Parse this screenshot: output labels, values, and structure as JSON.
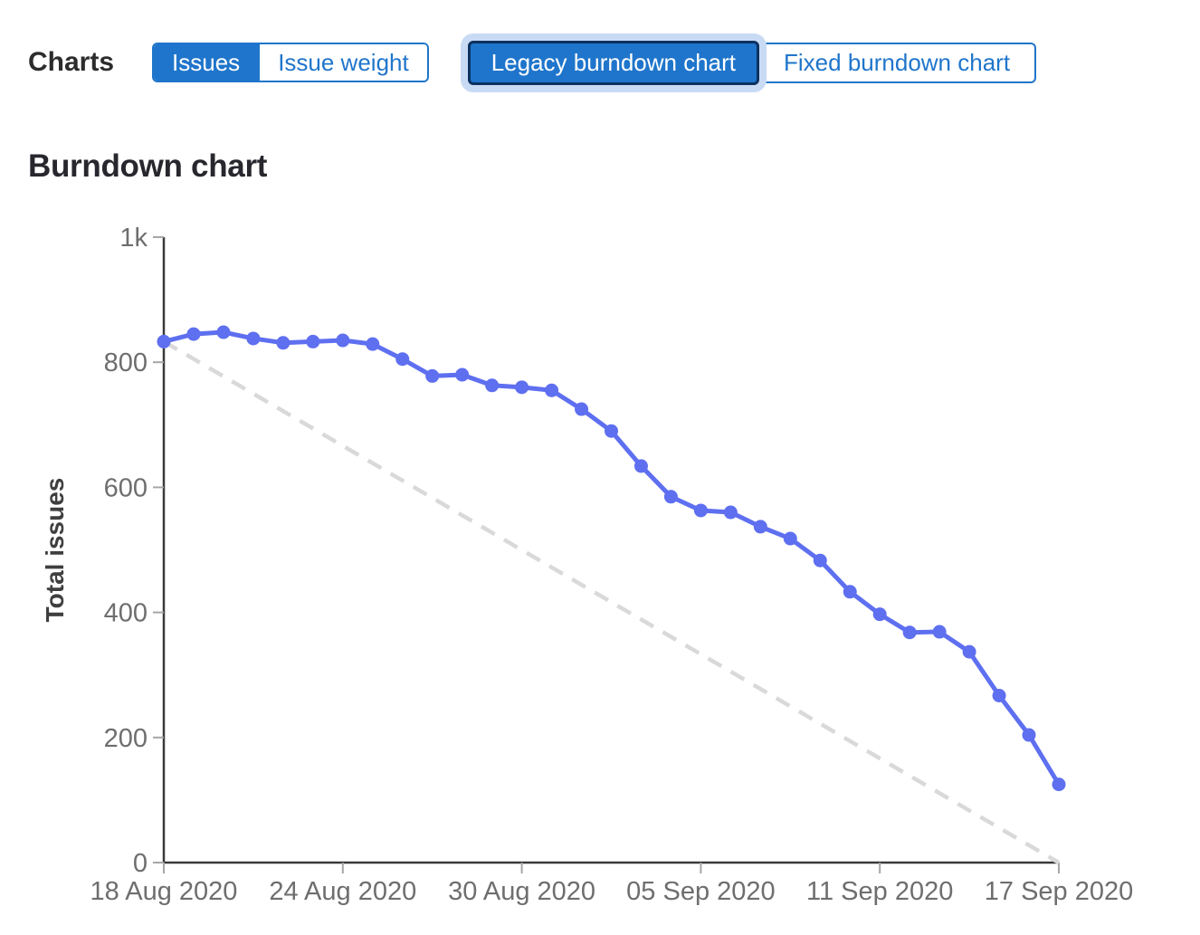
{
  "header": {
    "section_label": "Charts",
    "metric_toggle": {
      "options": [
        {
          "label": "Issues",
          "selected": true
        },
        {
          "label": "Issue weight",
          "selected": false
        }
      ]
    },
    "chart_type_toggle": {
      "options": [
        {
          "label": "Legacy burndown chart",
          "selected": true,
          "focused": true
        },
        {
          "label": "Fixed burndown chart",
          "selected": false
        }
      ]
    }
  },
  "chart_data": {
    "type": "line",
    "title": "Burndown chart",
    "xlabel": "",
    "ylabel": "Total issues",
    "ylim": [
      0,
      1000
    ],
    "grid": false,
    "legend": "none",
    "x_range": [
      "18 Aug 2020",
      "17 Sep 2020"
    ],
    "x_tick_labels": [
      "18 Aug 2020",
      "24 Aug 2020",
      "30 Aug 2020",
      "05 Sep 2020",
      "11 Sep 2020",
      "17 Sep 2020"
    ],
    "x_tick_day_index": [
      0,
      6,
      12,
      18,
      24,
      30
    ],
    "y_tick_labels": [
      "0",
      "200",
      "400",
      "600",
      "800",
      "1k"
    ],
    "y_tick_values": [
      0,
      200,
      400,
      600,
      800,
      1000
    ],
    "num_points": 31,
    "series": [
      {
        "name": "Total issues",
        "style": "solid-line-with-points",
        "color": "#5e6ff0",
        "values": [
          833,
          845,
          848,
          838,
          831,
          833,
          835,
          829,
          805,
          778,
          780,
          763,
          760,
          755,
          725,
          690,
          634,
          585,
          563,
          560,
          537,
          518,
          483,
          433,
          397,
          368,
          369,
          337,
          267,
          204,
          125
        ]
      },
      {
        "name": "Ideal guideline",
        "style": "dashed-line",
        "color": "#d9d9d9",
        "endpoint_values": [
          833,
          0
        ]
      }
    ]
  },
  "colors": {
    "accent_blue": "#1f75cb",
    "selected_button_border": "#0c3260",
    "focus_ring": "#c9dbf4",
    "series_blue": "#5e6ff0",
    "guideline_gray": "#d9d9d9",
    "axis_line": "#3a3a3a",
    "tick_mark": "#a6a6a6",
    "tick_text": "#6e6e6e",
    "heading_text": "#2c2c2c"
  }
}
